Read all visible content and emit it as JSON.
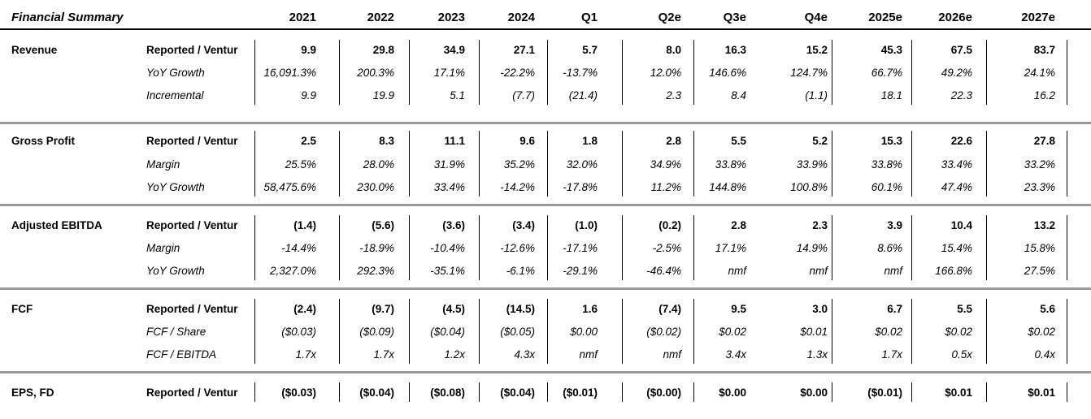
{
  "header": {
    "title": "Financial Summary",
    "columns": [
      "2021",
      "2022",
      "2023",
      "2024",
      "Q1",
      "Q2e",
      "Q3e",
      "Q4e",
      "2025e",
      "2026e",
      "2027e"
    ]
  },
  "sections": [
    {
      "name": "Revenue",
      "rows": [
        {
          "label": "Reported / Ventur",
          "style": "bold",
          "values": [
            "9.9",
            "29.8",
            "34.9",
            "27.1",
            "5.7",
            "8.0",
            "16.3",
            "15.2",
            "45.3",
            "67.5",
            "83.7"
          ]
        },
        {
          "label": "YoY Growth",
          "style": "italic",
          "values": [
            "16,091.3%",
            "200.3%",
            "17.1%",
            "-22.2%",
            "-13.7%",
            "12.0%",
            "146.6%",
            "124.7%",
            "66.7%",
            "49.2%",
            "24.1%"
          ]
        },
        {
          "label": "Incremental",
          "style": "italic",
          "values": [
            "9.9",
            "19.9",
            "5.1",
            "(7.7)",
            "(21.4)",
            "2.3",
            "8.4",
            "(1.1)",
            "18.1",
            "22.3",
            "16.2"
          ]
        }
      ]
    },
    {
      "name": "Gross Profit",
      "rows": [
        {
          "label": "Reported / Ventur",
          "style": "bold",
          "values": [
            "2.5",
            "8.3",
            "11.1",
            "9.6",
            "1.8",
            "2.8",
            "5.5",
            "5.2",
            "15.3",
            "22.6",
            "27.8"
          ]
        },
        {
          "label": "Margin",
          "style": "italic",
          "values": [
            "25.5%",
            "28.0%",
            "31.9%",
            "35.2%",
            "32.0%",
            "34.9%",
            "33.8%",
            "33.9%",
            "33.8%",
            "33.4%",
            "33.2%"
          ]
        },
        {
          "label": "YoY Growth",
          "style": "italic",
          "values": [
            "58,475.6%",
            "230.0%",
            "33.4%",
            "-14.2%",
            "-17.8%",
            "11.2%",
            "144.8%",
            "100.8%",
            "60.1%",
            "47.4%",
            "23.3%"
          ]
        }
      ]
    },
    {
      "name": "Adjusted EBITDA",
      "rows": [
        {
          "label": "Reported / Ventur",
          "style": "bold",
          "values": [
            "(1.4)",
            "(5.6)",
            "(3.6)",
            "(3.4)",
            "(1.0)",
            "(0.2)",
            "2.8",
            "2.3",
            "3.9",
            "10.4",
            "13.2"
          ]
        },
        {
          "label": "Margin",
          "style": "italic",
          "values": [
            "-14.4%",
            "-18.9%",
            "-10.4%",
            "-12.6%",
            "-17.1%",
            "-2.5%",
            "17.1%",
            "14.9%",
            "8.6%",
            "15.4%",
            "15.8%"
          ]
        },
        {
          "label": "YoY Growth",
          "style": "italic",
          "values": [
            "2,327.0%",
            "292.3%",
            "-35.1%",
            "-6.1%",
            "-29.1%",
            "-46.4%",
            "nmf",
            "nmf",
            "nmf",
            "166.8%",
            "27.5%"
          ]
        }
      ]
    },
    {
      "name": "FCF",
      "rows": [
        {
          "label": "Reported / Ventur",
          "style": "bold",
          "values": [
            "(2.4)",
            "(9.7)",
            "(4.5)",
            "(14.5)",
            "1.6",
            "(7.4)",
            "9.5",
            "3.0",
            "6.7",
            "5.5",
            "5.6"
          ]
        },
        {
          "label": "FCF / Share",
          "style": "italic",
          "values": [
            "($0.03)",
            "($0.09)",
            "($0.04)",
            "($0.05)",
            "$0.00",
            "($0.02)",
            "$0.02",
            "$0.01",
            "$0.02",
            "$0.02",
            "$0.02"
          ]
        },
        {
          "label": "FCF / EBITDA",
          "style": "italic",
          "values": [
            "1.7x",
            "1.7x",
            "1.2x",
            "4.3x",
            "nmf",
            "nmf",
            "3.4x",
            "1.3x",
            "1.7x",
            "0.5x",
            "0.4x"
          ]
        }
      ]
    },
    {
      "name": "EPS, FD",
      "rows": [
        {
          "label": "Reported / Ventur",
          "style": "bold",
          "values": [
            "($0.03)",
            "($0.04)",
            "($0.08)",
            "($0.04)",
            "($0.01)",
            "($0.00)",
            "$0.00",
            "$0.00",
            "($0.01)",
            "$0.01",
            "$0.01"
          ]
        }
      ]
    }
  ]
}
